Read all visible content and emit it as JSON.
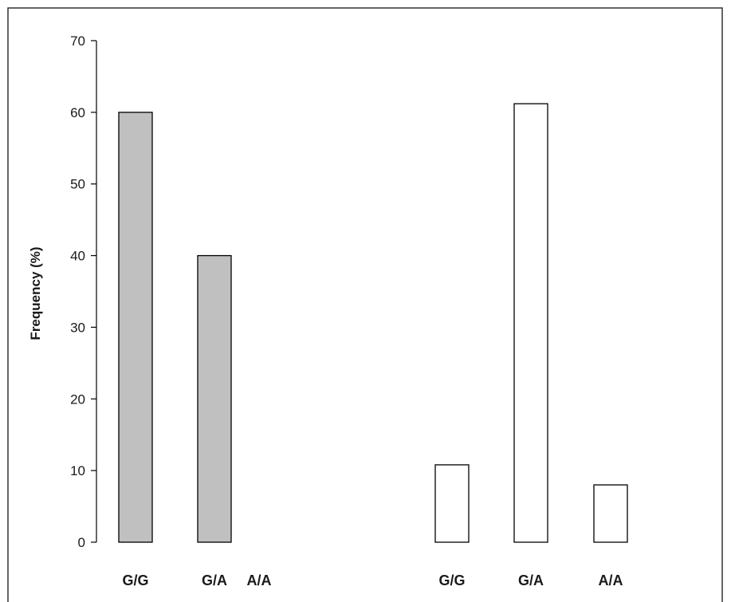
{
  "chart_data": {
    "type": "bar",
    "title": "",
    "xlabel": "",
    "ylabel": "Frequency  (%)",
    "ylim": [
      0,
      70
    ],
    "yticks": [
      0,
      10,
      20,
      30,
      40,
      50,
      60,
      70
    ],
    "grid": false,
    "legend": "none",
    "groups": [
      {
        "categories": [
          "G/G",
          "G/A",
          "A/A"
        ],
        "values": [
          60,
          40,
          0
        ],
        "fill": "#c0c0c0"
      },
      {
        "categories": [
          "G/G",
          "G/A",
          "A/A"
        ],
        "values": [
          10.8,
          61.2,
          8
        ],
        "fill": "#ffffff"
      }
    ],
    "colors": {
      "axis": "#000000",
      "bar_outline": "#000000",
      "frame": "#333333"
    }
  }
}
